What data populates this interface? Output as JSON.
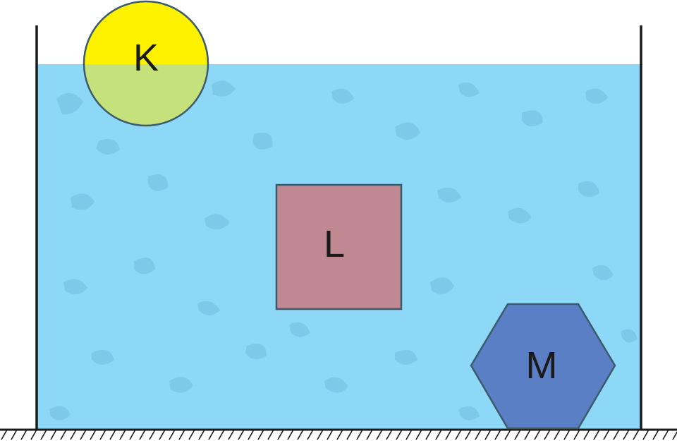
{
  "objects": [
    {
      "id": "K",
      "label": "K",
      "shape": "circle",
      "color": "#fef200",
      "submerged_color": "#c5e17c"
    },
    {
      "id": "L",
      "label": "L",
      "shape": "square",
      "color": "#c08890"
    },
    {
      "id": "M",
      "label": "M",
      "shape": "hexagon",
      "color": "#5b7fc4"
    }
  ],
  "colors": {
    "water": "#8dd8f6",
    "water_pattern": "#79c3e6",
    "outline": "#3b5a6c",
    "container": "#1a1a1a"
  }
}
